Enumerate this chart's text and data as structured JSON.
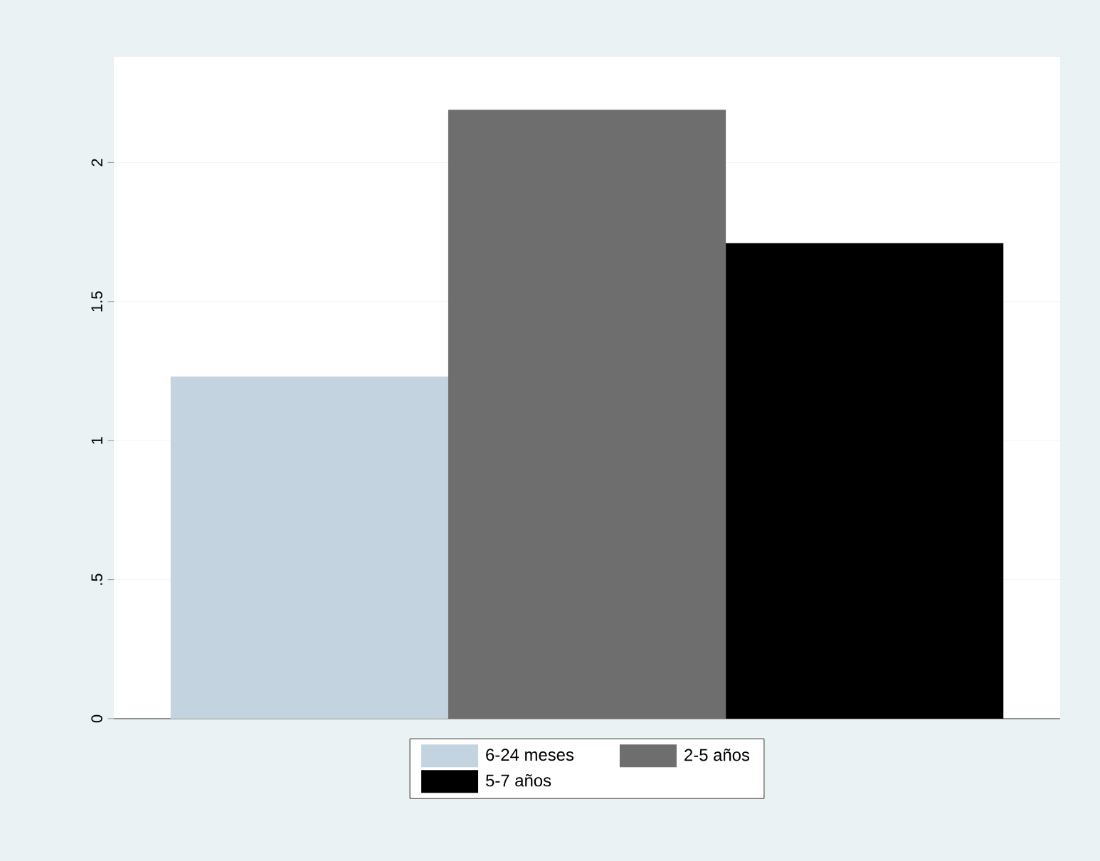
{
  "chart_data": {
    "type": "bar",
    "categories": [
      null
    ],
    "series": [
      {
        "name": "6-24 meses",
        "color": "#c4d3e0",
        "values": [
          1.23
        ]
      },
      {
        "name": "2-5 años",
        "color": "#6e6e6e",
        "values": [
          2.19
        ]
      },
      {
        "name": "5-7 años",
        "color": "#000000",
        "values": [
          1.71
        ]
      }
    ],
    "ylim": [
      0,
      2.38
    ],
    "yticks": [
      0,
      {
        "value": 0.5,
        "label": ".5"
      },
      1,
      {
        "value": 1.5,
        "label": "1.5"
      },
      2
    ],
    "grid": "y",
    "legend": "bottom"
  }
}
